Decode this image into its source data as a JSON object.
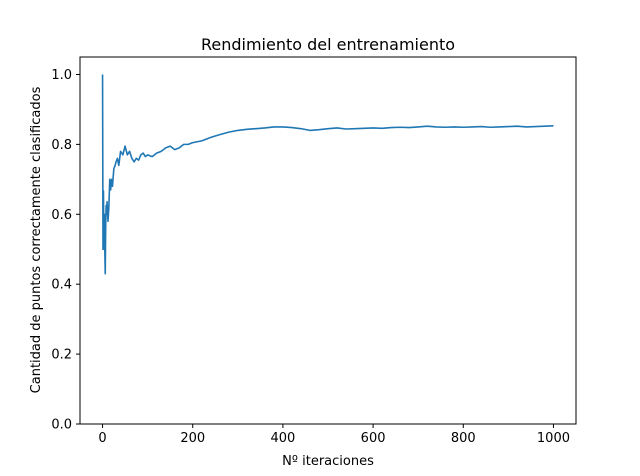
{
  "chart_data": {
    "type": "line",
    "title": "Rendimiento del entrenamiento",
    "xlabel": "Nº iteraciones",
    "ylabel": "Cantidad de puntos correctamente clasificados",
    "xlim": [
      -50,
      1050
    ],
    "ylim": [
      0.0,
      1.05
    ],
    "xticks": [
      0,
      200,
      400,
      600,
      800,
      1000
    ],
    "yticks": [
      "0.0",
      "0.2",
      "0.4",
      "0.6",
      "0.8",
      "1.0"
    ],
    "grid": false,
    "series": [
      {
        "color": "#1f77b4",
        "x": [
          0,
          1,
          2,
          3,
          4,
          5,
          6,
          7,
          8,
          9,
          10,
          12,
          14,
          16,
          18,
          20,
          22,
          25,
          28,
          30,
          33,
          36,
          40,
          45,
          50,
          55,
          60,
          65,
          70,
          75,
          80,
          85,
          90,
          95,
          100,
          110,
          120,
          130,
          140,
          150,
          160,
          170,
          180,
          190,
          200,
          220,
          240,
          260,
          280,
          300,
          320,
          340,
          360,
          380,
          400,
          420,
          440,
          460,
          480,
          500,
          520,
          540,
          560,
          580,
          600,
          620,
          640,
          660,
          680,
          700,
          720,
          740,
          760,
          780,
          800,
          820,
          840,
          860,
          880,
          900,
          920,
          940,
          960,
          980,
          1000
        ],
        "y": [
          1.0,
          0.5,
          0.667,
          0.5,
          0.6,
          0.5,
          0.43,
          0.57,
          0.625,
          0.6,
          0.636,
          0.58,
          0.62,
          0.7,
          0.67,
          0.7,
          0.68,
          0.73,
          0.74,
          0.75,
          0.76,
          0.74,
          0.78,
          0.77,
          0.795,
          0.77,
          0.78,
          0.76,
          0.75,
          0.76,
          0.755,
          0.77,
          0.775,
          0.765,
          0.77,
          0.765,
          0.775,
          0.78,
          0.79,
          0.795,
          0.785,
          0.79,
          0.8,
          0.8,
          0.805,
          0.81,
          0.82,
          0.828,
          0.835,
          0.84,
          0.843,
          0.845,
          0.847,
          0.85,
          0.85,
          0.848,
          0.845,
          0.84,
          0.842,
          0.845,
          0.847,
          0.844,
          0.845,
          0.846,
          0.847,
          0.846,
          0.848,
          0.849,
          0.848,
          0.85,
          0.852,
          0.85,
          0.849,
          0.85,
          0.849,
          0.85,
          0.851,
          0.849,
          0.85,
          0.851,
          0.852,
          0.85,
          0.851,
          0.852,
          0.853
        ]
      }
    ]
  }
}
